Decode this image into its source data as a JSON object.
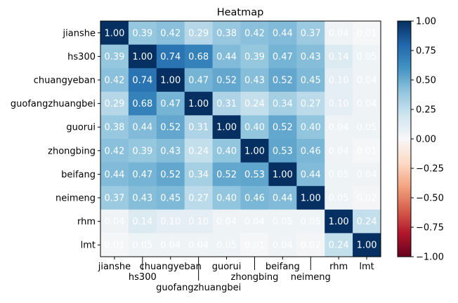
{
  "chart_data": {
    "type": "heatmap",
    "title": "Heatmap",
    "labels": [
      "jianshe",
      "hs300",
      "chuangyeban",
      "guofangzhuangbei",
      "guorui",
      "zhongbing",
      "beifang",
      "neimeng",
      "rhm",
      "lmt"
    ],
    "values": [
      [
        1.0,
        0.39,
        0.42,
        0.29,
        0.38,
        0.42,
        0.44,
        0.37,
        0.04,
        0.01
      ],
      [
        0.39,
        1.0,
        0.74,
        0.68,
        0.44,
        0.39,
        0.47,
        0.43,
        0.14,
        0.05
      ],
      [
        0.42,
        0.74,
        1.0,
        0.47,
        0.52,
        0.43,
        0.52,
        0.45,
        0.1,
        0.04
      ],
      [
        0.29,
        0.68,
        0.47,
        1.0,
        0.31,
        0.24,
        0.34,
        0.27,
        0.1,
        0.04
      ],
      [
        0.38,
        0.44,
        0.52,
        0.31,
        1.0,
        0.4,
        0.52,
        0.4,
        0.04,
        0.05
      ],
      [
        0.42,
        0.39,
        0.43,
        0.24,
        0.4,
        1.0,
        0.53,
        0.46,
        0.04,
        0.01
      ],
      [
        0.44,
        0.47,
        0.52,
        0.34,
        0.52,
        0.53,
        1.0,
        0.44,
        0.05,
        0.04
      ],
      [
        0.37,
        0.43,
        0.45,
        0.27,
        0.4,
        0.46,
        0.44,
        1.0,
        0.05,
        0.02
      ],
      [
        0.04,
        0.14,
        0.1,
        0.1,
        0.04,
        0.04,
        0.05,
        0.05,
        1.0,
        0.24
      ],
      [
        0.01,
        0.05,
        0.04,
        0.04,
        0.05,
        0.01,
        0.04,
        0.02,
        0.24,
        1.0
      ]
    ],
    "colormap": "RdBu",
    "vmin": -1.0,
    "vmax": 1.0,
    "colorbar_ticks": [
      "1.00",
      "0.75",
      "0.50",
      "0.25",
      "0.00",
      "−0.25",
      "−0.50",
      "−0.75",
      "−1.00"
    ],
    "colorbar_values": [
      1.0,
      0.75,
      0.5,
      0.25,
      0.0,
      -0.25,
      -0.5,
      -0.75,
      -1.0
    ],
    "annotation_color": "#ffffff"
  }
}
